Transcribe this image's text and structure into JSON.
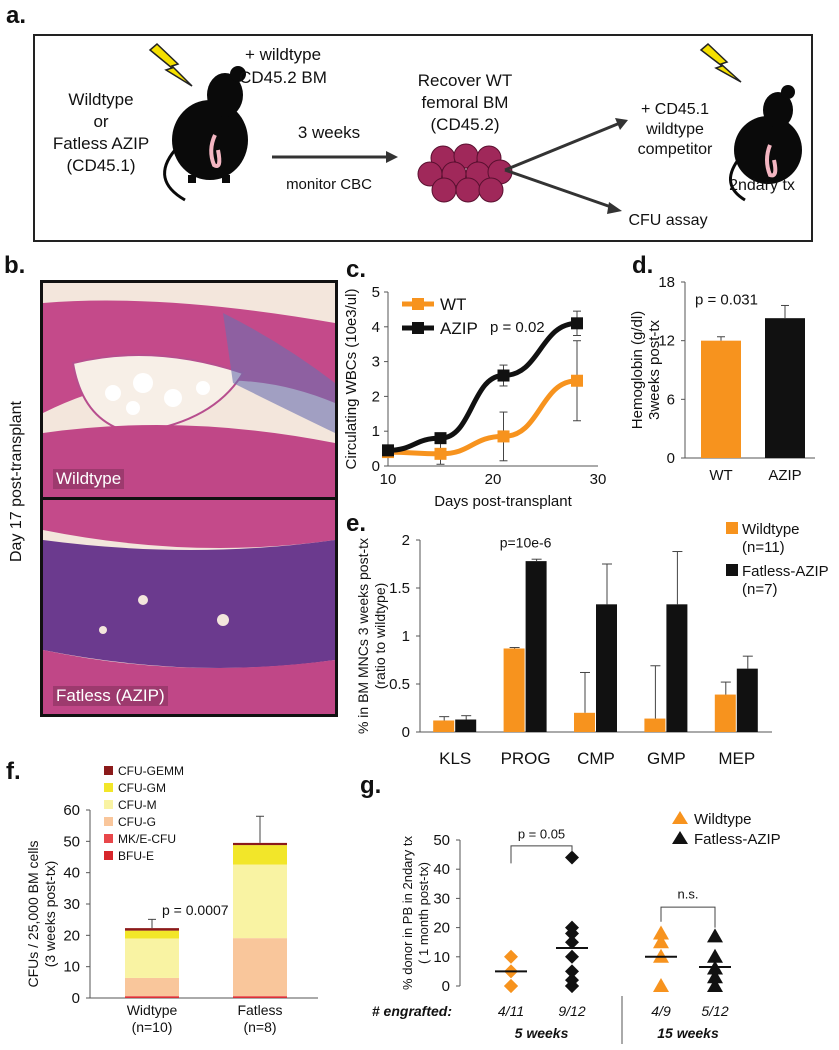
{
  "panels": {
    "a": "a.",
    "b": "b.",
    "c": "c.",
    "d": "d.",
    "e": "e.",
    "f": "f.",
    "g": "g."
  },
  "schematic": {
    "recipient": [
      "Wildtype",
      "or",
      "Fatless AZIP",
      "(CD45.1)"
    ],
    "donor": [
      "+ wildtype",
      "CD45.2 BM"
    ],
    "interval": "3 weeks",
    "monitor": "monitor CBC",
    "recover": [
      "Recover WT",
      "femoral BM",
      "(CD45.2)"
    ],
    "competitor": [
      "+ CD45.1",
      "wildtype",
      "competitor"
    ],
    "secondary": "2ndary tx",
    "cfu": "CFU assay"
  },
  "histology": {
    "side_label": "Day 17 post-transplant",
    "top_caption": "Wildtype",
    "bottom_caption": "Fatless (AZIP)"
  },
  "colors": {
    "wt": "#f7931e",
    "azip": "#111111",
    "bfu_e": "#d7262b",
    "mk_e": "#e8474a",
    "cfu_g": "#f9c69b",
    "cfu_m": "#f9f3a3",
    "cfu_gm": "#f2e629",
    "cfu_gemm": "#8b1a1a"
  },
  "chart_data": [
    {
      "type": "line",
      "xlabel": "Days post-transplant",
      "ylabel": "Circulating WBCs (10e3/ul)",
      "xlim": [
        10,
        30
      ],
      "ylim": [
        0,
        5
      ],
      "xticks": [
        10,
        20,
        30
      ],
      "yticks": [
        0,
        1,
        2,
        3,
        4,
        5
      ],
      "annotation": "p = 0.02",
      "legend_position": "top-left",
      "series": [
        {
          "name": "WT",
          "x": [
            10,
            15,
            21,
            28
          ],
          "y": [
            0.4,
            0.35,
            0.85,
            2.45
          ],
          "err": [
            0.1,
            0.3,
            0.7,
            1.15
          ]
        },
        {
          "name": "AZIP",
          "x": [
            10,
            15,
            21,
            28
          ],
          "y": [
            0.45,
            0.8,
            2.6,
            4.1
          ],
          "err": [
            0.1,
            0.1,
            0.3,
            0.35
          ]
        }
      ]
    },
    {
      "type": "bar",
      "ylabel": "Hemoglobin (g/dl) 3weeks post-tx",
      "categories": [
        "WT",
        "AZIP"
      ],
      "values": [
        12.0,
        14.3
      ],
      "err": [
        0.4,
        1.3
      ],
      "ylim": [
        0,
        18
      ],
      "yticks": [
        0,
        6,
        12,
        18
      ],
      "annotation": "p = 0.031"
    },
    {
      "type": "bar",
      "ylabel": "% in BM MNCs 3 weeks post-tx (ratio to wildtype)",
      "categories": [
        "KLS",
        "PROG",
        "CMP",
        "GMP",
        "MEP"
      ],
      "ylim": [
        0,
        2
      ],
      "yticks": [
        0,
        0.5,
        1,
        1.5,
        2
      ],
      "annotation": "p=10e-6",
      "legend_position": "top-right",
      "series": [
        {
          "name": "Wildtype (n=11)",
          "values": [
            0.12,
            0.87,
            0.2,
            0.14,
            0.39
          ],
          "err": [
            0.04,
            0.01,
            0.42,
            0.55,
            0.13
          ]
        },
        {
          "name": "Fatless-AZIP (n=7)",
          "values": [
            0.13,
            1.78,
            1.33,
            1.33,
            0.66
          ],
          "err": [
            0.04,
            0.02,
            0.42,
            0.55,
            0.13
          ]
        }
      ]
    },
    {
      "type": "bar",
      "stacked": true,
      "ylabel": "CFUs / 25,000 BM cells (3 weeks post-tx)",
      "categories": [
        "Widtype (n=10)",
        "Fatless (n=8)"
      ],
      "ylim": [
        0,
        60
      ],
      "yticks": [
        0,
        10,
        20,
        30,
        40,
        50,
        60
      ],
      "annotation": "p = 0.0007",
      "legend_position": "top-left",
      "legend_order": [
        "CFU-GEMM",
        "CFU-GM",
        "CFU-M",
        "CFU-G",
        "MK/E-CFU",
        "BFU-E"
      ],
      "series": [
        {
          "name": "BFU-E",
          "values": [
            0.3,
            0.3
          ]
        },
        {
          "name": "MK/E-CFU",
          "values": [
            0.3,
            0.3
          ]
        },
        {
          "name": "CFU-G",
          "values": [
            5.8,
            18.5
          ]
        },
        {
          "name": "CFU-M",
          "values": [
            12.6,
            23.5
          ]
        },
        {
          "name": "CFU-GM",
          "values": [
            2.5,
            6.2
          ]
        },
        {
          "name": "CFU-GEMM",
          "values": [
            0.8,
            0.7
          ]
        }
      ],
      "totals_err": [
        2.8,
        8.5
      ]
    },
    {
      "type": "scatter",
      "ylabel": "% donor in PB in 2ndary tx ( 1 month post-tx)",
      "ylim": [
        0,
        50
      ],
      "yticks": [
        0,
        10,
        20,
        30,
        40,
        50
      ],
      "row_label": "# engrafted:",
      "legend_position": "top-right",
      "annotations": [
        "p = 0.05",
        "n.s."
      ],
      "groups": [
        {
          "series": "Wildtype",
          "engrafted": "4/11",
          "time": "5 weeks",
          "points": [
            0,
            0,
            5,
            10
          ],
          "median": 5
        },
        {
          "series": "Fatless-AZIP",
          "engrafted": "9/12",
          "time": "5 weeks",
          "points": [
            0,
            0,
            2,
            5,
            10,
            15,
            18,
            20,
            44
          ],
          "median": 13
        },
        {
          "series": "Wildtype",
          "engrafted": "4/9",
          "time": "15 weeks",
          "points": [
            0,
            10,
            15,
            18
          ],
          "median": 10
        },
        {
          "series": "Fatless-AZIP",
          "engrafted": "5/12",
          "time": "15 weeks",
          "points": [
            0,
            3,
            6,
            10,
            17
          ],
          "median": 6.5
        }
      ],
      "time_labels": [
        "5 weeks",
        "15 weeks"
      ],
      "legend": [
        "Wildtype",
        "Fatless-AZIP"
      ]
    }
  ]
}
